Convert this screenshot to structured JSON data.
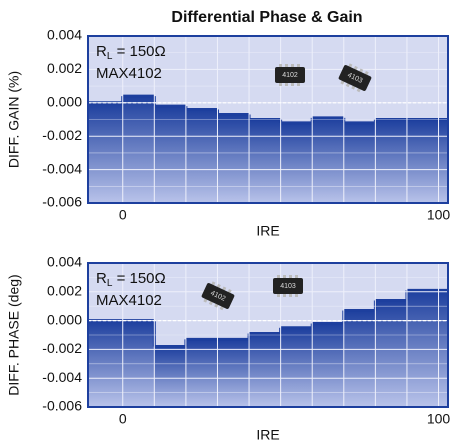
{
  "chart_data": [
    {
      "type": "step",
      "title": "Differential Phase & Gain",
      "x": [
        0,
        10,
        20,
        30,
        40,
        50,
        60,
        70,
        80,
        90,
        100
      ],
      "values": [
        0.0,
        0.0004,
        -0.0002,
        -0.0004,
        -0.0007,
        -0.001,
        -0.0012,
        -0.0009,
        -0.0012,
        -0.001,
        -0.001
      ],
      "xlim": [
        -11,
        103
      ],
      "xticks": [
        0,
        100
      ],
      "ylim": [
        -0.006,
        0.004
      ],
      "yticks": [
        -0.006,
        -0.004,
        -0.002,
        {
          "value": 0,
          "label": "0.000"
        },
        0.002,
        0.004
      ],
      "x_label": "IRE",
      "y_label": "DIFF. GAIN (%)",
      "annotation": {
        "symbol": "R",
        "subscript": "L",
        "rest": " = 150Ω",
        "part": "MAX4102"
      },
      "chips": [
        "4102",
        "4103"
      ],
      "color": "#1d3f9e",
      "grid": true
    },
    {
      "type": "step",
      "x": [
        0,
        10,
        20,
        30,
        40,
        50,
        60,
        70,
        80,
        90,
        100
      ],
      "values": [
        0.0,
        0.0,
        -0.0018,
        -0.0013,
        -0.0013,
        -0.0009,
        -0.0005,
        -0.0002,
        0.0007,
        0.0014,
        0.0021
      ],
      "xlim": [
        -11,
        103
      ],
      "xticks": [
        0,
        100
      ],
      "ylim": [
        -0.006,
        0.004
      ],
      "yticks": [
        -0.006,
        -0.004,
        -0.002,
        {
          "value": 0,
          "label": "0.000"
        },
        0.002,
        0.004
      ],
      "x_label": "IRE",
      "y_label": "DIFF. PHASE (deg)",
      "annotation": {
        "symbol": "R",
        "subscript": "L",
        "rest": " = 150Ω",
        "part": "MAX4102"
      },
      "chips": [
        "4102",
        "4103"
      ],
      "color": "#1d3f9e",
      "grid": true
    }
  ]
}
